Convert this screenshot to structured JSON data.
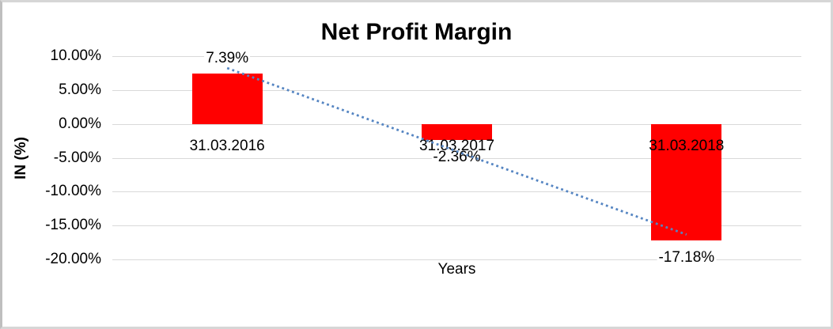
{
  "chart_data": {
    "type": "bar",
    "title": "Net Profit Margin",
    "xlabel": "Years",
    "ylabel": "IN (%)",
    "categories": [
      "31.03.2016",
      "31.03.2017",
      "31.03.2018"
    ],
    "values": [
      7.39,
      -2.36,
      -17.18
    ],
    "data_labels": [
      "7.39%",
      "-2.36%",
      "-17.18%"
    ],
    "ylim": [
      -20,
      10
    ],
    "ytick_step": 5,
    "ytick_labels": [
      "10.00%",
      "5.00%",
      "0.00%",
      "-5.00%",
      "-10.00%",
      "-15.00%",
      "-20.00%"
    ],
    "grid": true,
    "legend_position": "none",
    "trendline": {
      "type": "linear",
      "style": "dotted"
    }
  },
  "colors": {
    "bar": "#FF0000",
    "trendline": "#5585C2",
    "gridline": "#D9D9D9",
    "text": "#000000",
    "background": "#FFFFFF",
    "border": "#D6D6D6"
  }
}
